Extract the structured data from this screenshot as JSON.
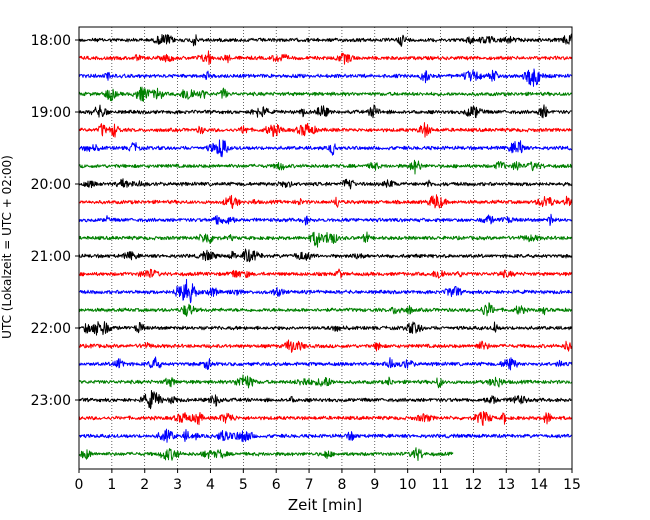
{
  "chart_data": {
    "type": "line",
    "title": "",
    "xlabel": "Zeit  [min]",
    "ylabel": "UTC (Lokalzeit = UTC + 02:00)",
    "xlim": [
      0,
      15
    ],
    "x_ticks": [
      "0",
      "1",
      "2",
      "3",
      "4",
      "5",
      "6",
      "7",
      "8",
      "9",
      "10",
      "11",
      "12",
      "13",
      "14",
      "15"
    ],
    "y_tick_labels": [
      "18:00",
      "19:00",
      "20:00",
      "21:00",
      "22:00",
      "23:00"
    ],
    "grid": "vertical-dotted",
    "trace_interval_min": 15,
    "row_count": 24,
    "last_row_end_min": 11.4,
    "colors": [
      "#000000",
      "#ff0000",
      "#0000ff",
      "#008000"
    ]
  }
}
